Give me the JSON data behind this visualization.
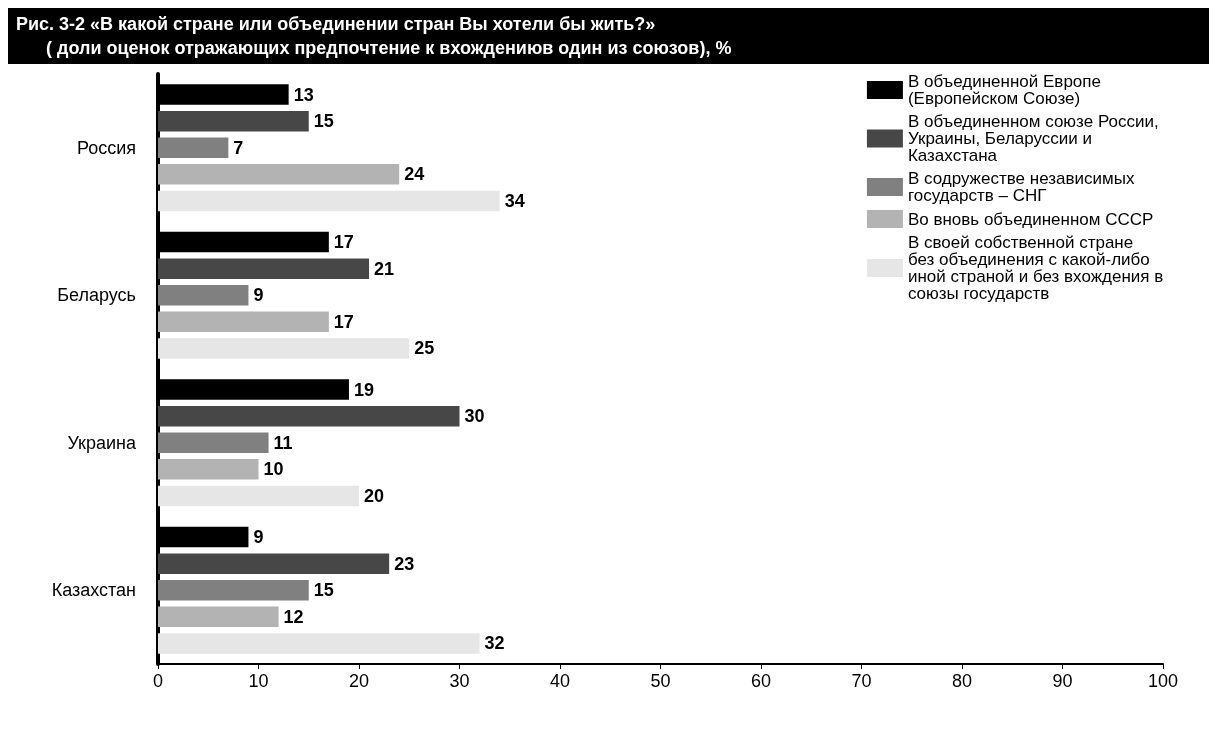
{
  "chart_data": {
    "type": "bar",
    "orientation": "horizontal",
    "title": "Рис. 3-2 «В какой стране или объединении стран Вы хотели бы жить?»",
    "subtitle": "( доли оценок отражающих предпочтение к вхождениюв один из союзов), %",
    "categories": [
      "Россия",
      "Беларусь",
      "Украина",
      "Казахстан"
    ],
    "series": [
      {
        "name": "В объединенной Европе (Европейском Союзе)",
        "color": "#000000",
        "values": [
          13,
          17,
          19,
          9
        ]
      },
      {
        "name": "В объединенном союзе России, Украины, Беларуссии и Казахстана",
        "color": "#474747",
        "values": [
          15,
          21,
          30,
          23
        ]
      },
      {
        "name": "В содружестве независимых государств – СНГ",
        "color": "#808080",
        "values": [
          7,
          9,
          11,
          15
        ]
      },
      {
        "name": "Во вновь объединенном СССР",
        "color": "#b3b3b3",
        "values": [
          24,
          17,
          10,
          12
        ]
      },
      {
        "name": "В своей собственной стране без объединения с какой-либо иной страной и без вхождения в союзы государств",
        "color": "#e6e6e6",
        "values": [
          34,
          25,
          20,
          32
        ]
      }
    ],
    "xlim": [
      0,
      100
    ],
    "xticks": [
      0,
      10,
      20,
      30,
      40,
      50,
      60,
      70,
      80,
      90,
      100
    ],
    "data_labels": true,
    "legend": "top right",
    "grid": false
  }
}
